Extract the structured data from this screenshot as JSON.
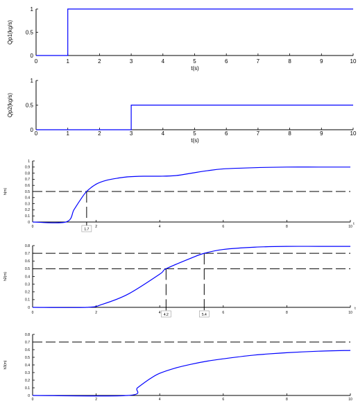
{
  "chart_data": [
    {
      "type": "line",
      "ylabel": "Qp1(kg/s)",
      "xlabel": "t(s)",
      "xlim": [
        0,
        10
      ],
      "ylim": [
        0,
        1
      ],
      "xticks": [
        "0",
        "1",
        "2",
        "3",
        "4",
        "5",
        "6",
        "7",
        "8",
        "9",
        "10"
      ],
      "yticks": [
        "0",
        "0.5",
        "1"
      ],
      "color": "#0000ff",
      "series": [
        {
          "x": [
            0,
            1,
            1,
            10
          ],
          "y": [
            0,
            0,
            1,
            1
          ]
        }
      ]
    },
    {
      "type": "line",
      "ylabel": "Qp2(kg/s)",
      "xlabel": "t(s)",
      "xlim": [
        0,
        10
      ],
      "ylim": [
        0,
        1
      ],
      "xticks": [
        "0",
        "1",
        "2",
        "3",
        "4",
        "5",
        "6",
        "7",
        "8",
        "9",
        "10"
      ],
      "yticks": [
        "0",
        "0.5",
        "1"
      ],
      "color": "#0000ff",
      "series": [
        {
          "x": [
            0,
            3,
            3,
            10
          ],
          "y": [
            0,
            0,
            0.5,
            0.5
          ]
        }
      ]
    },
    {
      "type": "line",
      "ylabel": "h(m)",
      "xlabel": "t",
      "xlim": [
        0,
        10
      ],
      "ylim": [
        0,
        1
      ],
      "xticks": [
        "0",
        "2",
        "4",
        "6",
        "8",
        "10"
      ],
      "yticks": [
        "0",
        "0.1",
        "0.2",
        "0.3",
        "0.4",
        "0.5",
        "0.6",
        "0.7",
        "0.8",
        "0.9",
        "1"
      ],
      "color": "#0000ff",
      "series": [
        {
          "x": [
            0,
            1.05,
            1.3,
            1.5,
            1.7,
            2.0,
            2.3,
            2.7,
            3.0,
            3.5,
            4.0,
            4.5,
            5.0,
            5.5,
            6.0,
            7.0,
            8.0,
            9.0,
            10.0
          ],
          "y": [
            0,
            0,
            0.2,
            0.36,
            0.5,
            0.62,
            0.68,
            0.72,
            0.74,
            0.75,
            0.75,
            0.76,
            0.8,
            0.84,
            0.87,
            0.89,
            0.9,
            0.9,
            0.9
          ]
        }
      ],
      "hlines": [
        0.5
      ],
      "vmarkers": [
        {
          "x": 1.7,
          "label": "1.7"
        }
      ]
    },
    {
      "type": "line",
      "ylabel": "h2(m)",
      "xlabel": "t",
      "xlim": [
        0,
        10
      ],
      "ylim": [
        0,
        0.8
      ],
      "xticks": [
        "0",
        "2",
        "4",
        "6",
        "8",
        "10"
      ],
      "yticks": [
        "0",
        "0.1",
        "0.2",
        "0.3",
        "0.4",
        "0.5",
        "0.6",
        "0.7",
        "0.8"
      ],
      "color": "#0000ff",
      "series": [
        {
          "x": [
            0,
            1.7,
            2.2,
            3.0,
            4.0,
            4.2,
            5.0,
            5.4,
            6.0,
            7.0,
            8.0,
            9.0,
            10.0
          ],
          "y": [
            0,
            0,
            0.04,
            0.17,
            0.43,
            0.5,
            0.64,
            0.7,
            0.75,
            0.78,
            0.79,
            0.79,
            0.79
          ]
        }
      ],
      "hlines": [
        0.7,
        0.5
      ],
      "vmarkers": [
        {
          "x": 4.2,
          "label": "4.2"
        },
        {
          "x": 5.4,
          "label": "5.4"
        }
      ]
    },
    {
      "type": "line",
      "ylabel": "h3(m)",
      "xlim": [
        0,
        10
      ],
      "ylim": [
        0,
        0.8
      ],
      "xticks": [
        "0",
        "2",
        "4",
        "6",
        "8",
        "10"
      ],
      "yticks": [
        "0",
        "0.1",
        "0.2",
        "0.3",
        "0.4",
        "0.5",
        "0.6",
        "0.7",
        "0.8"
      ],
      "color": "#0000ff",
      "series": [
        {
          "x": [
            0,
            3.0,
            3.3,
            3.7,
            4.0,
            4.5,
            5.0,
            5.5,
            6.0,
            7.0,
            8.0,
            9.0,
            10.0
          ],
          "y": [
            0,
            0,
            0.1,
            0.22,
            0.29,
            0.36,
            0.41,
            0.45,
            0.48,
            0.53,
            0.56,
            0.58,
            0.59
          ]
        }
      ],
      "hlines": [
        0.7
      ]
    }
  ]
}
